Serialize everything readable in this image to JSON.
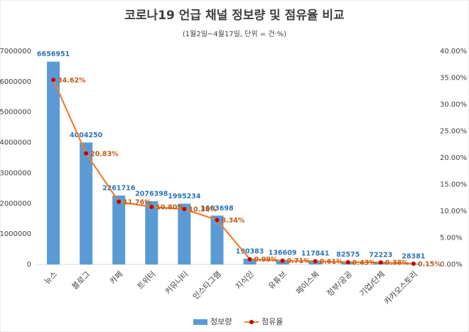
{
  "chart_data": {
    "type": "bar",
    "title": "코로나19 언급 채널 정보량 및 점유율 비교",
    "subtitle": "(1월2일~4월17일, 단위 = 건·%)",
    "categories": [
      "뉴스",
      "블로그",
      "카페",
      "트위터",
      "커뮤니티",
      "인스타그램",
      "지식인",
      "유튜브",
      "페이스북",
      "정부/공공",
      "기업/단체",
      "카카오스토리"
    ],
    "series": [
      {
        "name": "정보량",
        "type": "bar",
        "color": "#5b9bd5",
        "values": [
          6656951,
          4004250,
          2261716,
          2076398,
          1995234,
          1603698,
          190383,
          136609,
          117841,
          82575,
          72223,
          28381
        ]
      },
      {
        "name": "점유율",
        "type": "line",
        "axis": "y2",
        "color": "#ed7d31",
        "values": [
          34.62,
          20.83,
          11.76,
          10.8,
          10.38,
          8.34,
          0.99,
          0.71,
          0.61,
          0.43,
          0.38,
          0.15
        ],
        "value_labels": [
          "34.62%",
          "20.83%",
          "11.76%",
          "10.80%",
          "10.38%",
          "8.34%",
          "0.99%",
          "0.71%",
          "0.61%",
          "0.43%",
          "0.38%",
          "0.15%"
        ]
      }
    ],
    "ylim": [
      0,
      7000000
    ],
    "yticks": [
      0,
      1000000,
      2000000,
      3000000,
      4000000,
      5000000,
      6000000,
      7000000
    ],
    "y2lim": [
      0,
      40
    ],
    "y2ticks": [
      {
        "value": 0,
        "label": "0.00%"
      },
      {
        "value": 5,
        "label": "5.00%"
      },
      {
        "value": 10,
        "label": "10.00%"
      },
      {
        "value": 15,
        "label": "15.00%"
      },
      {
        "value": 20,
        "label": "20.00%"
      },
      {
        "value": 25,
        "label": "25.00%"
      },
      {
        "value": 30,
        "label": "30.00%"
      },
      {
        "value": 35,
        "label": "35.00%"
      },
      {
        "value": 40,
        "label": "40.00%"
      }
    ],
    "grid": false,
    "legend": "bottom"
  }
}
